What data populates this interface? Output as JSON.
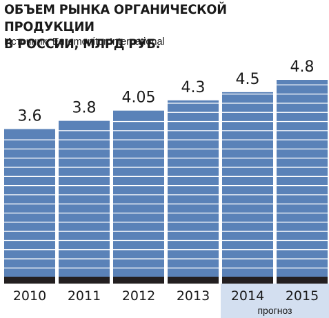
{
  "chart_data": {
    "type": "bar",
    "title_lines": [
      "ОБЪЕМ РЫНКА ОРГАНИЧЕСКОЙ ПРОДУКЦИИ",
      "В РОССИИ, МЛРД РУБ."
    ],
    "source": "Источник: Euromonitor International",
    "categories": [
      "2010",
      "2011",
      "2012",
      "2013",
      "2014",
      "2015"
    ],
    "values": [
      3.6,
      3.8,
      4.05,
      4.3,
      4.5,
      4.8
    ],
    "value_labels": [
      "3.6",
      "3.8",
      "4.05",
      "4.3",
      "4.5",
      "4.8"
    ],
    "forecast_label": "прогноз",
    "forecast_categories": [
      "2014",
      "2015"
    ],
    "ylim": [
      0,
      4.8
    ],
    "grid": false,
    "colors": {
      "bar": "#5a82b8",
      "bar_stripe": "#ffffff",
      "baseline": "#231f20",
      "forecast_band": "#d3dff0"
    }
  }
}
